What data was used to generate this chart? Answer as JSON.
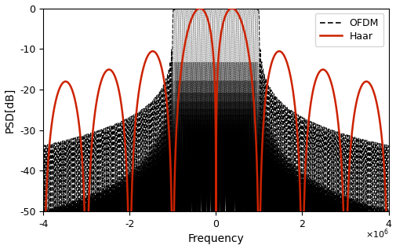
{
  "title": "",
  "xlabel": "Frequency",
  "ylabel": "PSD[dB]",
  "xlim": [
    -4000000.0,
    4000000.0
  ],
  "ylim": [
    -50,
    0
  ],
  "xticks": [
    -4000000.0,
    -2000000.0,
    0,
    2000000.0,
    4000000.0
  ],
  "xtick_labels": [
    "-4",
    "-2",
    "0",
    "2",
    "4"
  ],
  "yticks": [
    0,
    -10,
    -20,
    -30,
    -40,
    -50
  ],
  "ofdm_color": "#000000",
  "haar_color": "#cc2200",
  "background_color": "#ffffff",
  "num_ofdm_subcarriers": 64,
  "ofdm_bw": 2000000.0,
  "haar_bw": 1000000.0,
  "legend_fontsize": 9,
  "tick_fontsize": 9,
  "xlabel_fontsize": 10,
  "ylabel_fontsize": 10
}
